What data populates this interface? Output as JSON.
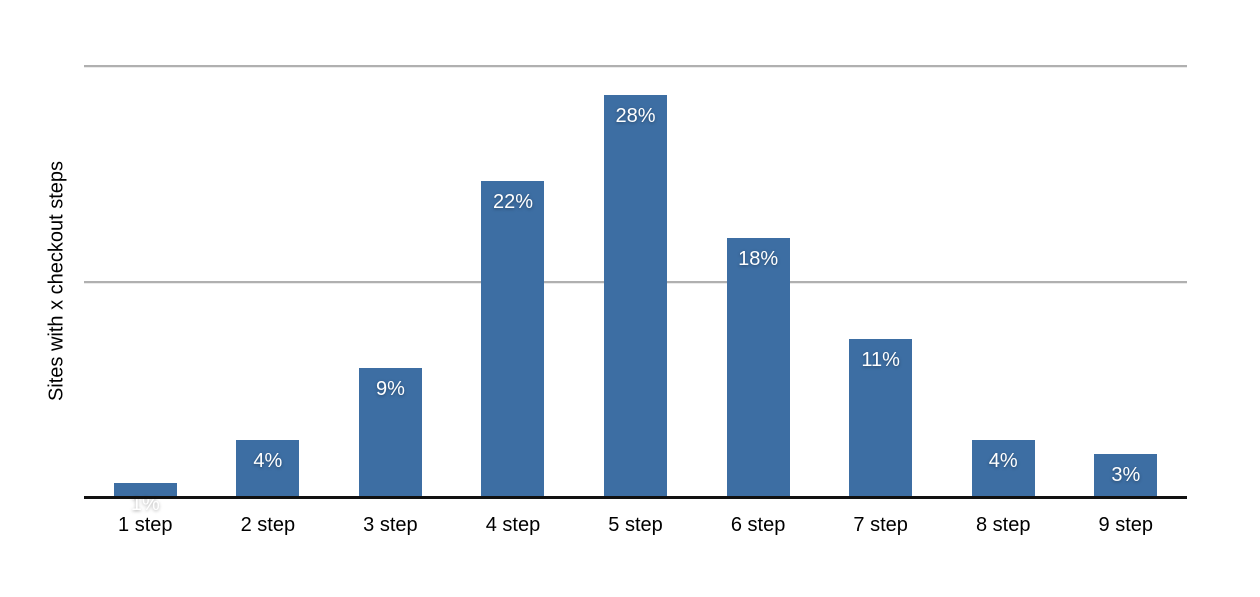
{
  "chart": {
    "bar_color": "#3d6ea3",
    "value_label_color": "#ffffff",
    "grid_color": "#b0b0b0",
    "axis_color": "#111111",
    "text_color": "#000000",
    "background_color": "#ffffff"
  },
  "chart_data": {
    "type": "bar",
    "title": "",
    "xlabel": "",
    "ylabel": "Sites with x checkout steps",
    "categories": [
      "1 step",
      "2 step",
      "3 step",
      "4 step",
      "5 step",
      "6 step",
      "7 step",
      "8 step",
      "9 step"
    ],
    "values": [
      1,
      4,
      9,
      22,
      28,
      18,
      11,
      4,
      3
    ],
    "value_labels": [
      "1%",
      "4%",
      "9%",
      "22%",
      "28%",
      "18%",
      "11%",
      "4%",
      "3%"
    ],
    "ylim": [
      0,
      30
    ],
    "gridlines_y": [
      15,
      30
    ],
    "y_tick_labels_visible": false,
    "grid": true,
    "legend": false,
    "value_label_position": "inside-top"
  }
}
